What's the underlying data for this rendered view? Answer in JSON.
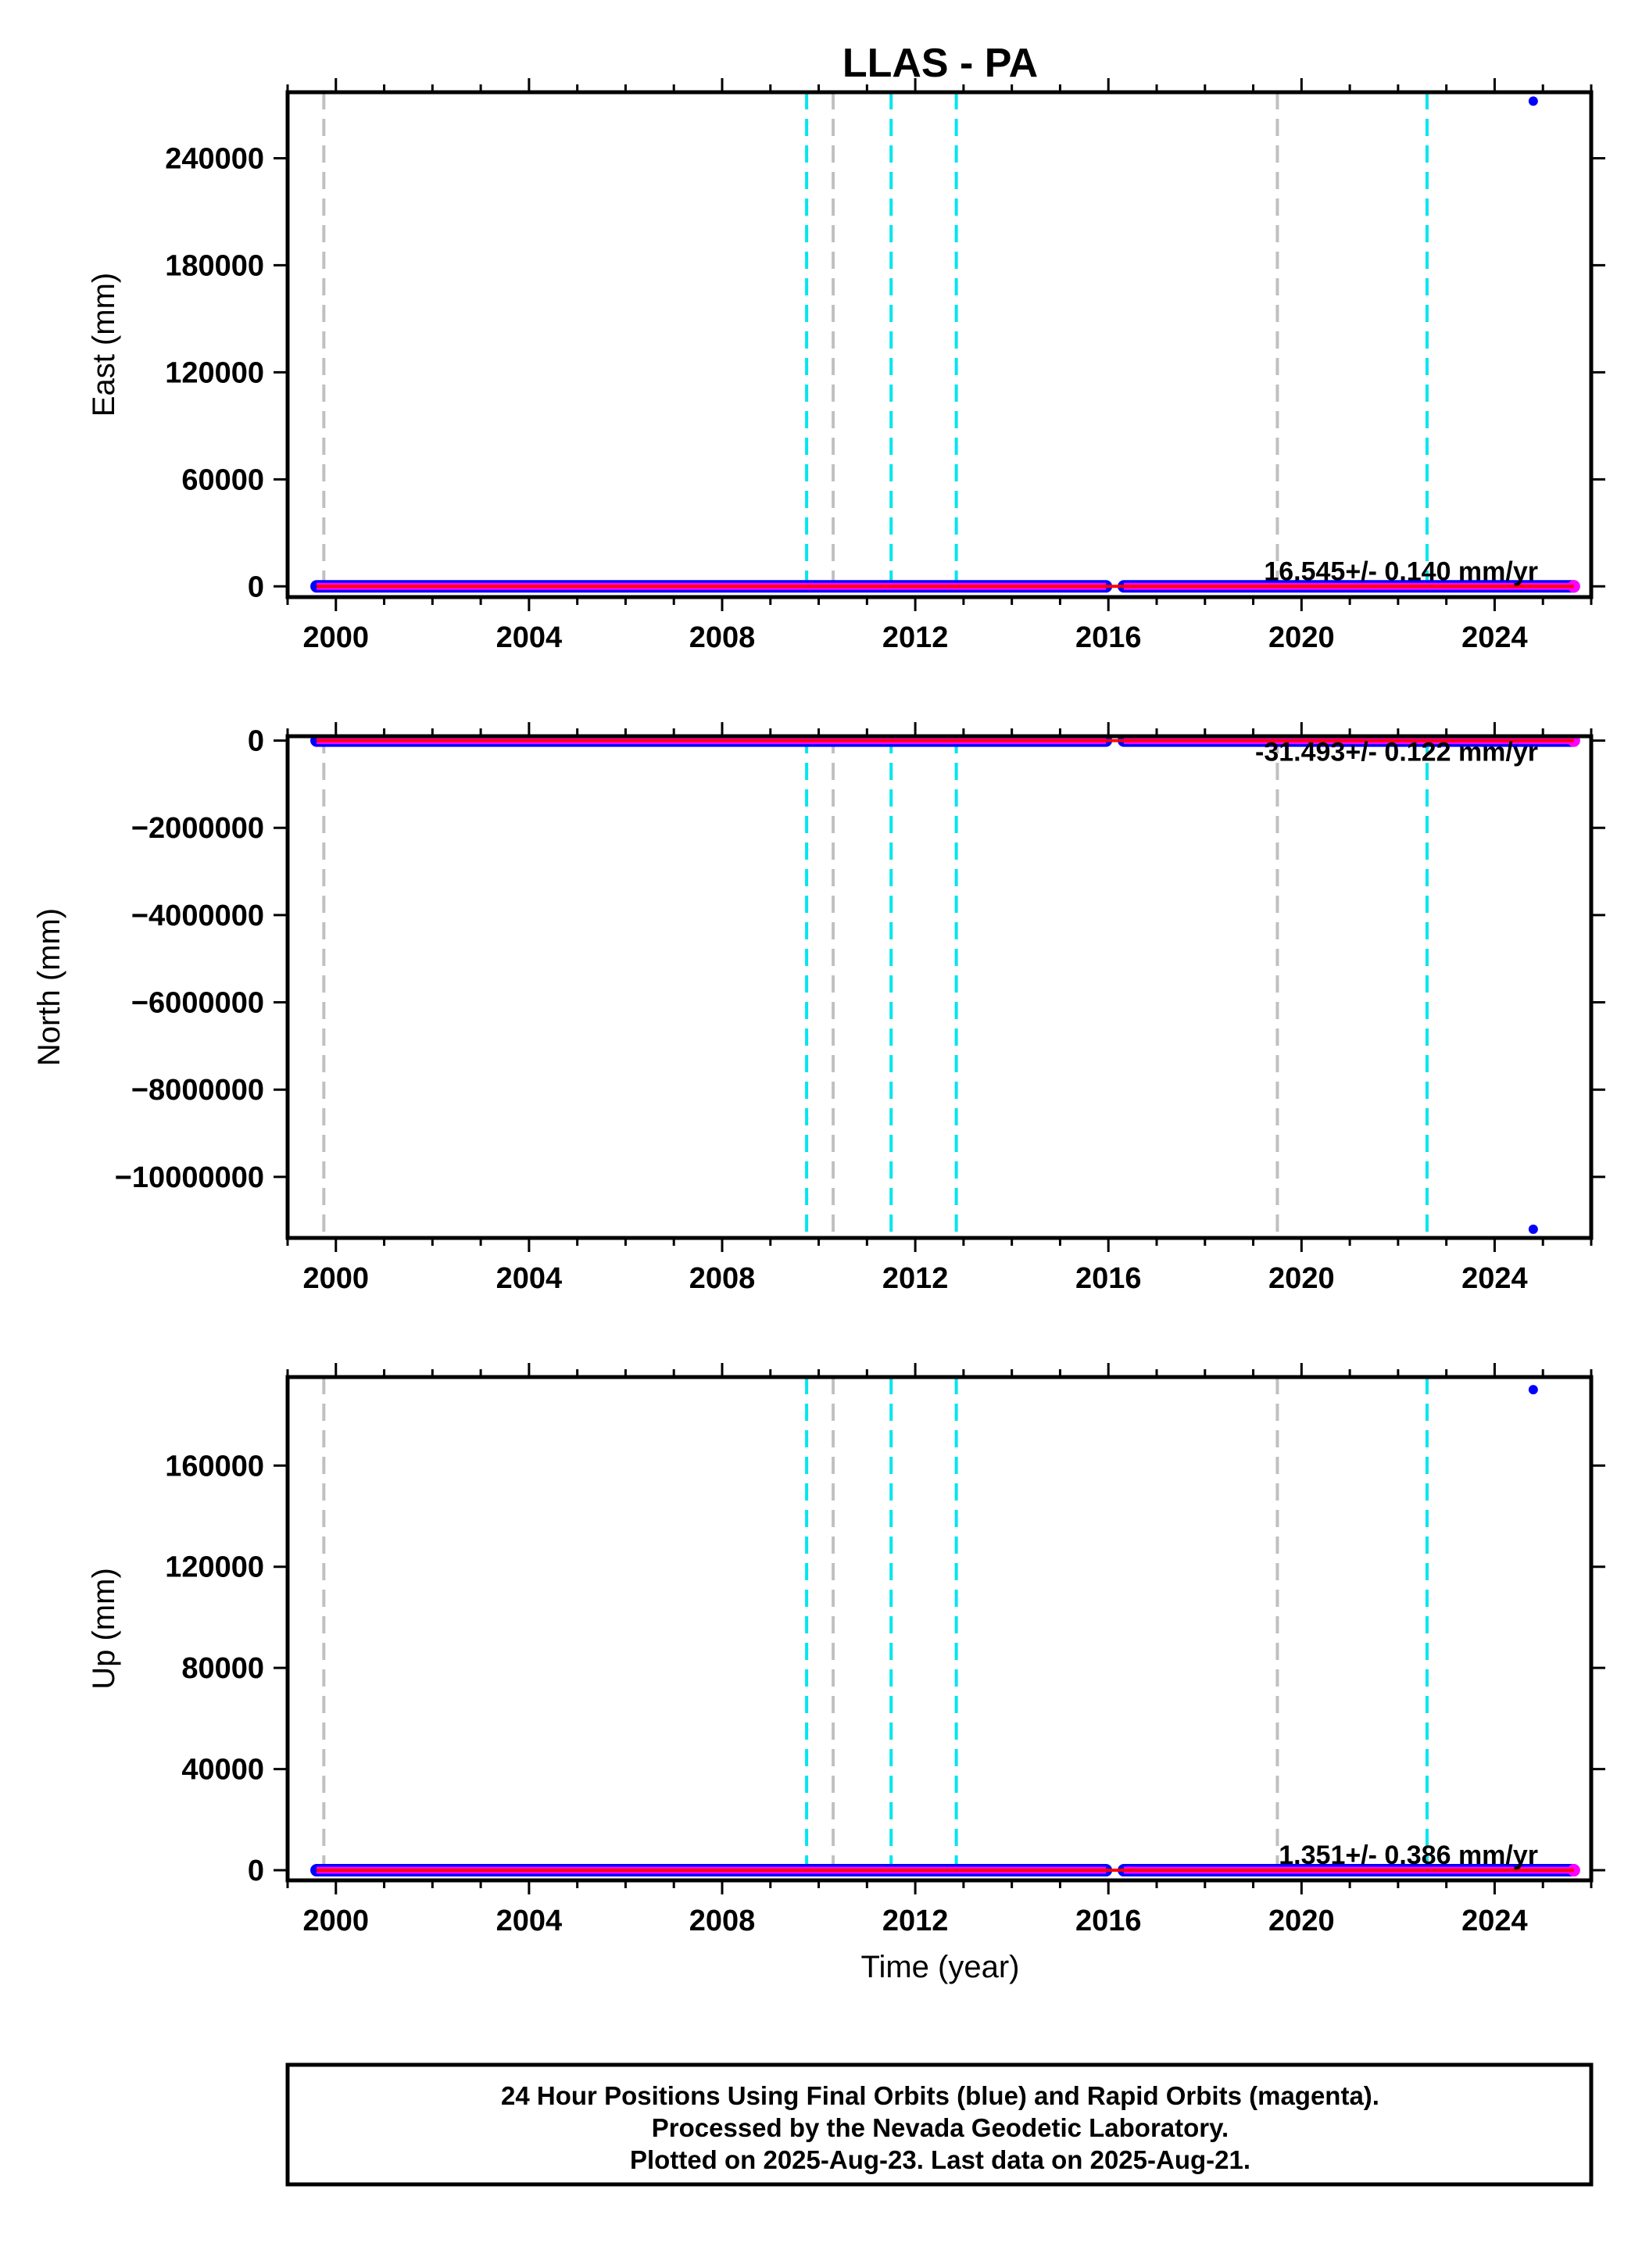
{
  "title": "LLAS - PA",
  "colors": {
    "final_orbits": "#0000ff",
    "rapid_orbits": "#ff00ff",
    "trend_line": "#ff0000",
    "equipment_change": "#00e5ee",
    "other_event": "#c0c0c0",
    "frame": "#000000"
  },
  "chart_data": [
    {
      "type": "scatter",
      "name": "east",
      "ylabel": "East (mm)",
      "xlim": [
        1999.0,
        2026.0
      ],
      "ylim": [
        -6000,
        277000
      ],
      "x_ticks": [
        2000,
        2004,
        2008,
        2012,
        2016,
        2020,
        2024
      ],
      "y_ticks": [
        0,
        60000,
        120000,
        180000,
        240000
      ],
      "rate_label": "16.545+/- 0.140 mm/yr",
      "data_range": [
        1999.6,
        2025.64
      ],
      "gap": [
        2015.95,
        2016.32
      ],
      "outlier": {
        "x": 2024.8,
        "y": 272000
      }
    },
    {
      "type": "scatter",
      "name": "north",
      "ylabel": "North (mm)",
      "xlim": [
        1999.0,
        2026.0
      ],
      "ylim": [
        -11400000,
        100000
      ],
      "x_ticks": [
        2000,
        2004,
        2008,
        2012,
        2016,
        2020,
        2024
      ],
      "y_ticks": [
        0,
        -2000000,
        -4000000,
        -6000000,
        -8000000,
        -10000000
      ],
      "y_tick_labels": [
        "0",
        "−2000000",
        "−4000000",
        "−6000000",
        "−8000000",
        "−10000000"
      ],
      "rate_label": "-31.493+/- 0.122 mm/yr",
      "data_range": [
        1999.6,
        2025.64
      ],
      "gap": [
        2015.95,
        2016.32
      ],
      "outlier": {
        "x": 2024.8,
        "y": -11200000
      }
    },
    {
      "type": "scatter",
      "name": "up",
      "ylabel": "Up (mm)",
      "xlabel": "Time (year)",
      "xlim": [
        1999.0,
        2026.0
      ],
      "ylim": [
        -4000,
        195000
      ],
      "x_ticks": [
        2000,
        2004,
        2008,
        2012,
        2016,
        2020,
        2024
      ],
      "y_ticks": [
        0,
        40000,
        80000,
        120000,
        160000
      ],
      "rate_label": "1.351+/- 0.386 mm/yr",
      "data_range": [
        1999.6,
        2025.64
      ],
      "gap": [
        2015.95,
        2016.32
      ],
      "outlier": {
        "x": 2024.8,
        "y": 190000
      }
    }
  ],
  "event_lines": {
    "equipment_change": [
      2009.75,
      2011.5,
      2012.85,
      2022.6
    ],
    "other_event": [
      1999.75,
      2010.3,
      2019.5
    ]
  },
  "footer": {
    "line1": "24 Hour Positions Using Final Orbits (blue) and Rapid Orbits (magenta).",
    "line2": "Processed by the Nevada Geodetic Laboratory.",
    "line3": "Plotted on 2025-Aug-23. Last data on 2025-Aug-21."
  }
}
